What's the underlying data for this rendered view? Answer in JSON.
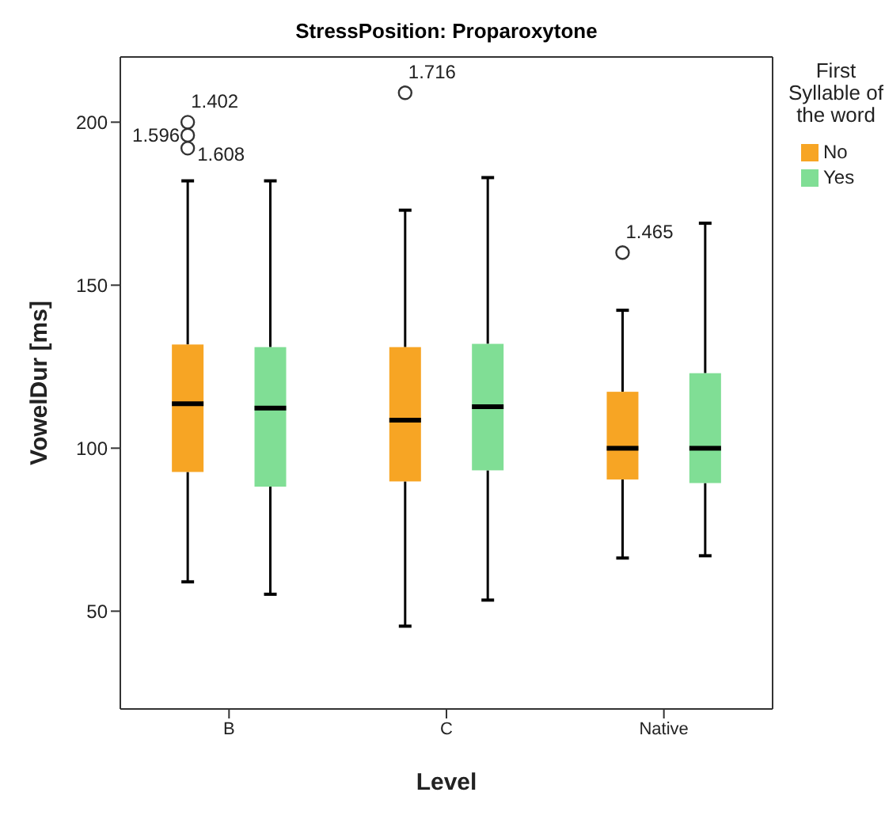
{
  "chart_data": {
    "type": "box",
    "title": "StressPosition: Proparoxytone",
    "xlabel": "Level",
    "ylabel": "VowelDur [ms]",
    "legend_title": "First Syllable of the word",
    "categories": [
      "B",
      "C",
      "Native"
    ],
    "series": [
      {
        "name": "No",
        "color": "#f7a524",
        "boxes": [
          {
            "low": 59,
            "q1": 92.7,
            "median": 113.6,
            "q3": 131.8,
            "high": 182,
            "outliers": [
              200,
              196,
              192
            ]
          },
          {
            "low": 45.4,
            "q1": 89.8,
            "median": 108.6,
            "q3": 131,
            "high": 173,
            "outliers": [
              209
            ]
          },
          {
            "low": 66.3,
            "q1": 90.4,
            "median": 100,
            "q3": 117.3,
            "high": 142.3,
            "outliers": [
              160
            ]
          }
        ]
      },
      {
        "name": "Yes",
        "color": "#80de95",
        "boxes": [
          {
            "low": 55.2,
            "q1": 88.2,
            "median": 112.3,
            "q3": 131,
            "high": 182
          },
          {
            "low": 53.4,
            "q1": 93.2,
            "median": 112.7,
            "q3": 132,
            "high": 183
          },
          {
            "low": 67,
            "q1": 89.3,
            "median": 100,
            "q3": 123,
            "high": 169
          }
        ]
      }
    ],
    "annotations": [
      "1.402",
      "1.596",
      "1.608",
      "1.716",
      "1.465"
    ],
    "ylim": [
      20,
      220
    ],
    "yticks": [
      50,
      100,
      150,
      200
    ],
    "grid": false,
    "legend": "right"
  }
}
